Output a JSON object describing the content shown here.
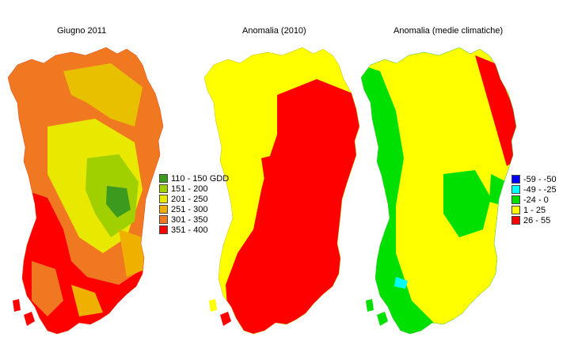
{
  "maps": [
    {
      "title": "Giugno 2011",
      "legend": [
        {
          "label": "110 - 150 GDD",
          "color": "#3c9a1e"
        },
        {
          "label": "151 - 200",
          "color": "#a0d000"
        },
        {
          "label": "201 - 250",
          "color": "#e8e800"
        },
        {
          "label": "251 - 300",
          "color": "#f0b000"
        },
        {
          "label": "301 - 350",
          "color": "#f07820"
        },
        {
          "label": "351 - 400",
          "color": "#ff0000"
        }
      ]
    },
    {
      "title": "Anomalia (2010)"
    },
    {
      "title": "Anomalia (medie climatiche)",
      "legend": [
        {
          "label": "-59 - -50",
          "color": "#0000ff"
        },
        {
          "label": "-49 - -25",
          "color": "#00ffff"
        },
        {
          "label": "-24 - 0",
          "color": "#00e000"
        },
        {
          "label": "1 - 25",
          "color": "#ffff00"
        },
        {
          "label": "26 - 55",
          "color": "#ff0000"
        }
      ]
    }
  ]
}
